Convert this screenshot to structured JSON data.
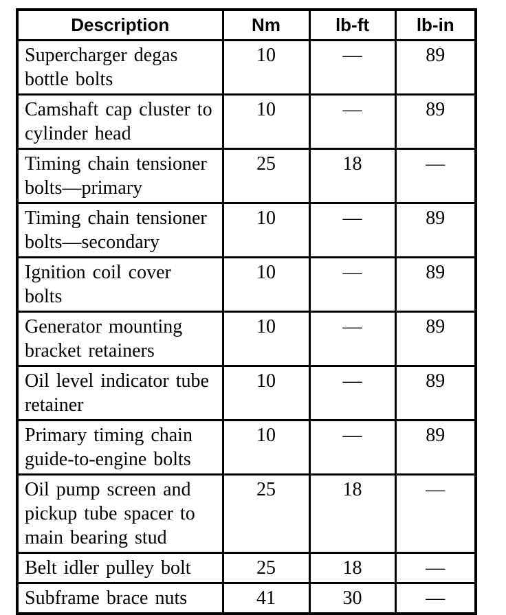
{
  "table": {
    "headers": {
      "description": "Description",
      "nm": "Nm",
      "lb_ft": "lb-ft",
      "lb_in": "lb-in"
    },
    "rows": [
      {
        "description": "Supercharger degas\nbottle bolts",
        "nm": "10",
        "lb_ft": "—",
        "lb_in": "89"
      },
      {
        "description": "Camshaft cap cluster to\ncylinder head",
        "nm": "10",
        "lb_ft": "—",
        "lb_in": "89"
      },
      {
        "description": "Timing chain tensioner\nbolts—primary",
        "nm": "25",
        "lb_ft": "18",
        "lb_in": "—"
      },
      {
        "description": "Timing chain tensioner\nbolts—secondary",
        "nm": "10",
        "lb_ft": "—",
        "lb_in": "89"
      },
      {
        "description": "Ignition coil cover\nbolts",
        "nm": "10",
        "lb_ft": "—",
        "lb_in": "89"
      },
      {
        "description": "Generator mounting\nbracket retainers",
        "nm": "10",
        "lb_ft": "—",
        "lb_in": "89"
      },
      {
        "description": "Oil level indicator tube\nretainer",
        "nm": "10",
        "lb_ft": "—",
        "lb_in": "89"
      },
      {
        "description": "Primary timing chain\nguide-to-engine bolts",
        "nm": "10",
        "lb_ft": "—",
        "lb_in": "89"
      },
      {
        "description": "Oil pump screen and\npickup tube spacer to\nmain bearing stud",
        "nm": "25",
        "lb_ft": "18",
        "lb_in": "—"
      },
      {
        "description": "Belt idler pulley bolt",
        "nm": "25",
        "lb_ft": "18",
        "lb_in": "—"
      },
      {
        "description": "Subframe brace nuts",
        "nm": "41",
        "lb_ft": "30",
        "lb_in": "—"
      }
    ],
    "colors": {
      "border": "#000000",
      "background": "#ffffff",
      "text": "#000000"
    }
  }
}
